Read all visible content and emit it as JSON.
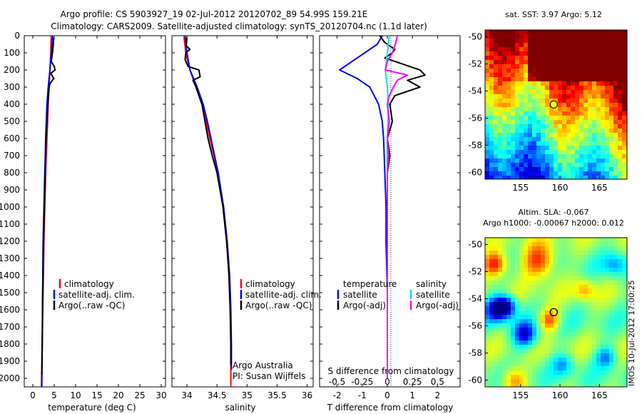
{
  "header": {
    "line1": "Argo profile: CS 5903927_19 02-Jul-2012 20120702_89 54.99S 159.21E",
    "line2": "Climatology: CARS2009. Satellite-adjusted climatology: synTS_20120704.nc (1.1d later)"
  },
  "colors": {
    "climatology": "#ff0000",
    "satellite": "#0000ff",
    "argo": "#000000",
    "salinity_satellite": "#00e5e5",
    "salinity_argo": "#ff00ff"
  },
  "stamp": "IMOS 10-Jul-2012 17:00:25",
  "credits": {
    "org": "Argo Australia",
    "pi": "PI: Susan Wijffels"
  },
  "chart_data": [
    {
      "type": "line",
      "xlabel": "temperature (deg C)",
      "ylabel": "",
      "xlim": [
        -2,
        31
      ],
      "ylim": [
        2050,
        0
      ],
      "y_reversed": true,
      "xticks": [
        0,
        5,
        10,
        15,
        20,
        25,
        30
      ],
      "yticks": [
        0,
        100,
        200,
        300,
        400,
        500,
        600,
        700,
        800,
        900,
        1000,
        1100,
        1200,
        1300,
        1400,
        1500,
        1600,
        1700,
        1800,
        1900,
        2000
      ],
      "legend": [
        "climatology",
        "satellite-adj. clim.",
        "Argo(..raw -QC)"
      ],
      "legend_placement": "center",
      "series": [
        {
          "name": "climatology",
          "color": "#ff0000",
          "depth": [
            0,
            100,
            200,
            300,
            400,
            600,
            800,
            1000,
            1200,
            1500,
            1800,
            2050
          ],
          "values": [
            4.3,
            4.2,
            4.0,
            3.8,
            3.6,
            3.3,
            3.0,
            2.8,
            2.6,
            2.4,
            2.2,
            2.0
          ]
        },
        {
          "name": "satellite-adj. clim.",
          "color": "#0000ff",
          "depth": [
            0,
            50,
            100,
            200,
            300,
            400,
            600,
            800,
            1000,
            1200,
            1500,
            1800,
            2050
          ],
          "values": [
            4.6,
            4.5,
            4.3,
            4.0,
            3.6,
            3.3,
            3.0,
            2.8,
            2.6,
            2.4,
            2.3,
            2.2,
            2.1
          ]
        },
        {
          "name": "Argo(..raw -QC)",
          "color": "#000000",
          "depth": [
            10,
            50,
            100,
            150,
            180,
            200,
            220,
            250,
            280,
            300,
            400,
            500,
            600,
            800,
            1000,
            1200,
            1500,
            1800,
            1980
          ],
          "values": [
            4.9,
            4.8,
            4.6,
            4.3,
            5.0,
            5.2,
            4.2,
            4.9,
            4.0,
            3.8,
            3.5,
            3.3,
            3.1,
            2.9,
            2.7,
            2.5,
            2.3,
            2.2,
            2.1
          ]
        }
      ]
    },
    {
      "type": "line",
      "xlabel": "salinity",
      "xlim": [
        33.75,
        36.1
      ],
      "ylim": [
        2050,
        0
      ],
      "y_reversed": true,
      "xticks": [
        34,
        34.5,
        35,
        35.5,
        36
      ],
      "legend": [
        "climatology",
        "satellite-adj. clim.",
        "Argo(..raw -QC)"
      ],
      "legend_placement": "bottom-right",
      "series": [
        {
          "name": "climatology",
          "color": "#ff0000",
          "depth": [
            0,
            100,
            200,
            300,
            400,
            500,
            600,
            700,
            800,
            1000,
            1200,
            1400,
            1600,
            1800,
            2050
          ],
          "values": [
            33.95,
            33.98,
            34.05,
            34.15,
            34.25,
            34.32,
            34.38,
            34.45,
            34.52,
            34.6,
            34.66,
            34.7,
            34.72,
            34.73,
            34.73
          ]
        },
        {
          "name": "satellite-adj. clim.",
          "color": "#0000ff",
          "depth": [
            0,
            100,
            200,
            300,
            400,
            500,
            600,
            700,
            800,
            1000,
            1200,
            1400,
            1600,
            1800,
            1950
          ],
          "values": [
            33.97,
            34.0,
            34.05,
            34.17,
            34.27,
            34.34,
            34.4,
            34.46,
            34.52,
            34.61,
            34.67,
            34.71,
            34.73,
            34.74,
            34.74
          ]
        },
        {
          "name": "Argo(..raw -QC)",
          "color": "#000000",
          "depth": [
            10,
            60,
            80,
            100,
            140,
            180,
            200,
            240,
            260,
            300,
            400,
            500,
            600,
            700,
            800,
            900,
            1000,
            1200,
            1400,
            1600,
            1800,
            1920
          ],
          "values": [
            34.0,
            33.99,
            34.05,
            33.98,
            33.97,
            34.02,
            34.2,
            34.22,
            34.1,
            34.15,
            34.25,
            34.3,
            34.35,
            34.42,
            34.5,
            34.55,
            34.6,
            34.66,
            34.7,
            34.72,
            34.73,
            34.73
          ]
        }
      ]
    },
    {
      "type": "line",
      "xlabel": "T difference from climatology",
      "xlabel_top": "S difference from climatology",
      "xlim_T": [
        -2.7,
        2.9
      ],
      "xticks_T": [
        -2,
        -1,
        0,
        1,
        2
      ],
      "xticklabels_S": [
        "-0.5",
        "-0.25",
        "0",
        "0.25",
        "0.5"
      ],
      "xticks_S": [
        -0.5,
        -0.25,
        0,
        0.25,
        0.5
      ],
      "ylim": [
        2050,
        0
      ],
      "y_reversed": true,
      "legend_headers": [
        "temperature",
        "salinity"
      ],
      "legend": [
        "satellite",
        "Argo(-adj)",
        "satellite",
        "Argo(-adj)"
      ],
      "legend_placement": "bottom",
      "series": [
        {
          "name": "satellite",
          "quantity": "temperature",
          "color": "#0000ff",
          "depth": [
            0,
            50,
            100,
            150,
            200,
            250,
            300,
            400,
            500,
            600,
            800,
            1000,
            1200,
            1500,
            1800,
            2000
          ],
          "values": [
            -0.2,
            -0.4,
            -0.9,
            -1.4,
            -1.9,
            -1.2,
            -0.7,
            -0.35,
            -0.2,
            -0.15,
            -0.1,
            -0.05,
            -0.05,
            0,
            0,
            0
          ]
        },
        {
          "name": "Argo(-adj)",
          "quantity": "temperature",
          "color": "#000000",
          "depth": [
            0,
            40,
            80,
            100,
            130,
            160,
            200,
            230,
            260,
            300,
            350,
            400,
            500,
            600,
            700,
            800,
            1000,
            1200,
            1500,
            1800,
            2000
          ],
          "values": [
            -0.3,
            -0.1,
            0.3,
            0.2,
            -0.1,
            0.5,
            1.3,
            1.5,
            0.8,
            1.3,
            0.3,
            0.1,
            0.2,
            0.0,
            0.1,
            0.0,
            0.0,
            0.0,
            0.0,
            0.0,
            0.0
          ]
        },
        {
          "name": "satellite",
          "quantity": "salinity",
          "color": "#00e5e5",
          "depth": [
            0,
            100,
            200,
            300,
            400,
            600,
            800,
            1000,
            1200,
            1500,
            1800,
            2000
          ],
          "values": [
            0.02,
            0.0,
            -0.02,
            0.0,
            0.01,
            0.0,
            0.0,
            0.0,
            0.0,
            0.0,
            0.0,
            0.0
          ]
        },
        {
          "name": "Argo(-adj)",
          "quantity": "salinity",
          "color": "#ff00ff",
          "depth": [
            0,
            50,
            100,
            150,
            200,
            230,
            260,
            300,
            350,
            400,
            500,
            600,
            700,
            800,
            1000,
            1200,
            1400,
            1600,
            1800,
            2000
          ],
          "values": [
            0.1,
            0.08,
            0.05,
            0.0,
            -0.02,
            0.2,
            0.1,
            0.06,
            0.02,
            0.0,
            0.02,
            0.0,
            0.01,
            0.0,
            0.0,
            0.0,
            0.0,
            0.0,
            0.0,
            0.0
          ]
        }
      ]
    },
    {
      "type": "heatmap",
      "title": "sat. SST: 3.97  Argo: 5.12",
      "xlim": [
        150.5,
        168.5
      ],
      "ylim": [
        -60.5,
        -49.5
      ],
      "xticks": [
        155,
        160,
        165
      ],
      "yticks": [
        -50,
        -52,
        -54,
        -56,
        -58,
        -60
      ],
      "argo_position": {
        "lon": 159.21,
        "lat": -54.99
      },
      "colormap": "jet"
    },
    {
      "type": "heatmap",
      "title": "Altim. SLA: -0.067",
      "subtitle": "Argo h1000: -0.00067 h2000: 0.012",
      "xlim": [
        150.5,
        168.5
      ],
      "ylim": [
        -60.5,
        -49.5
      ],
      "xticks": [
        155,
        160,
        165
      ],
      "yticks": [
        -50,
        -52,
        -54,
        -56,
        -58,
        -60
      ],
      "argo_position": {
        "lon": 159.21,
        "lat": -54.99
      },
      "colormap": "jet"
    }
  ]
}
